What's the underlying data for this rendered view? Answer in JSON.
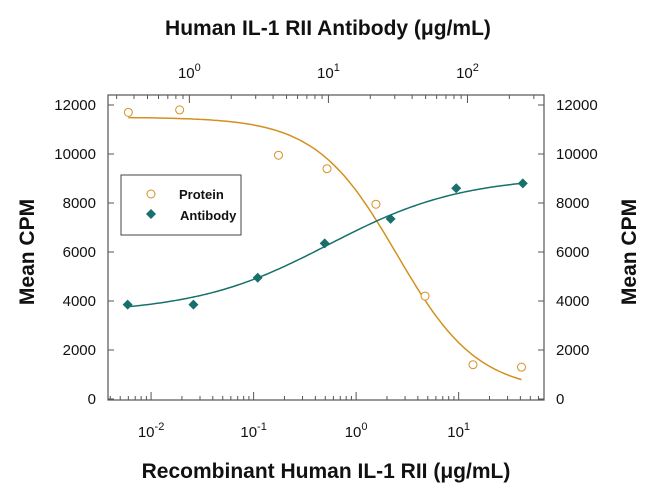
{
  "chart_data": {
    "type": "scatter",
    "title": "",
    "x_bottom": {
      "label": "Recombinant Human IL-1 RII (μg/mL)",
      "scale": "log",
      "range": [
        0.0038,
        68
      ],
      "ticks": [
        0.01,
        0.1,
        1,
        10
      ],
      "tick_labels": [
        {
          "base": "10",
          "exp": "-2"
        },
        {
          "base": "10",
          "exp": "-1"
        },
        {
          "base": "10",
          "exp": "0"
        },
        {
          "base": "10",
          "exp": "1"
        }
      ]
    },
    "x_top": {
      "label": "Human IL-1 RII Antibody (μg/mL)",
      "scale": "log",
      "range": [
        0.26,
        355
      ],
      "ticks": [
        1,
        10,
        100
      ],
      "tick_labels": [
        {
          "base": "10",
          "exp": "0"
        },
        {
          "base": "10",
          "exp": "1"
        },
        {
          "base": "10",
          "exp": "2"
        }
      ]
    },
    "y_left": {
      "label": "Mean CPM",
      "range": [
        0,
        12000
      ],
      "ticks": [
        0,
        2000,
        4000,
        6000,
        8000,
        10000,
        12000
      ]
    },
    "y_right": {
      "label": "Mean CPM",
      "range": [
        0,
        12000
      ],
      "ticks": [
        0,
        2000,
        4000,
        6000,
        8000,
        10000,
        12000
      ]
    },
    "grid": false,
    "legend": {
      "placement": "middle-left"
    },
    "series": [
      {
        "name": "Protein",
        "axis": "bottom",
        "marker": "open-circle",
        "color": "#d4901f",
        "fit": "sigmoid-decreasing",
        "x": [
          0.006,
          0.019,
          0.175,
          0.52,
          1.56,
          4.7,
          13.8,
          41
        ],
        "y": [
          11700,
          11800,
          9950,
          9400,
          7950,
          4200,
          1400,
          1300
        ]
      },
      {
        "name": "Antibody",
        "axis": "top",
        "marker": "filled-diamond",
        "color": "#17706b",
        "fit": "sigmoid-increasing",
        "x": [
          0.36,
          1.07,
          3.1,
          9.4,
          28,
          83,
          250
        ],
        "y": [
          3850,
          3850,
          4950,
          6350,
          7350,
          8600,
          8800
        ]
      }
    ]
  }
}
